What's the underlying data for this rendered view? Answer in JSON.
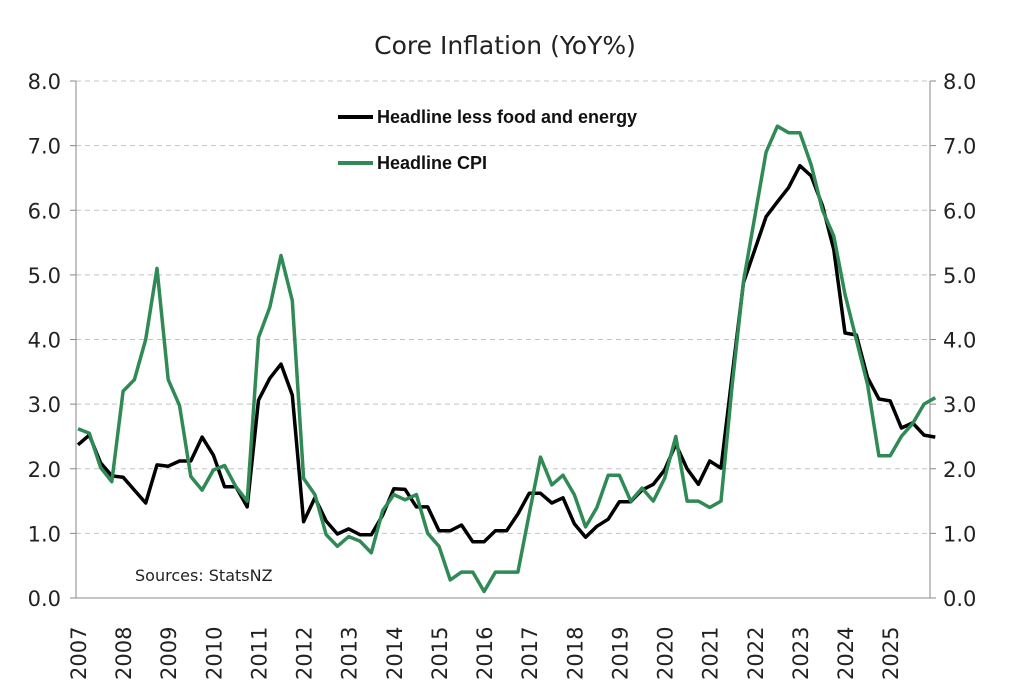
{
  "chart_data": {
    "type": "line",
    "title": "Core Inflation (YoY%)",
    "xlabel": "",
    "ylabel": "",
    "ylim": [
      0,
      8
    ],
    "yticks": [
      "0.0",
      "1.0",
      "2.0",
      "3.0",
      "4.0",
      "5.0",
      "6.0",
      "7.0",
      "8.0"
    ],
    "y2ticks": [
      "0.0",
      "1.0",
      "2.0",
      "3.0",
      "4.0",
      "5.0",
      "6.0",
      "7.0",
      "8.0"
    ],
    "xticks": [
      "2007",
      "2008",
      "2009",
      "2010",
      "2011",
      "2012",
      "2013",
      "2014",
      "2015",
      "2016",
      "2017",
      "2018",
      "2019",
      "2020",
      "2021",
      "2022",
      "2023",
      "2024",
      "2025"
    ],
    "x_start": 2007,
    "x_step": 0.25,
    "grid": "horizontal dashed",
    "legend_position": "top-center",
    "annotation": "Sources:  StatsNZ",
    "series": [
      {
        "name": "Headline less food and energy",
        "color": "#000000",
        "values": [
          2.37,
          2.52,
          2.09,
          1.89,
          1.87,
          1.67,
          1.47,
          2.06,
          2.04,
          2.12,
          2.12,
          2.49,
          2.21,
          1.72,
          1.72,
          1.41,
          3.06,
          3.4,
          3.62,
          3.14,
          1.18,
          1.55,
          1.19,
          0.99,
          1.07,
          0.98,
          0.98,
          1.28,
          1.69,
          1.68,
          1.41,
          1.41,
          1.04,
          1.04,
          1.13,
          0.87,
          0.87,
          1.04,
          1.04,
          1.3,
          1.62,
          1.62,
          1.47,
          1.55,
          1.15,
          0.94,
          1.11,
          1.22,
          1.49,
          1.49,
          1.67,
          1.76,
          1.98,
          2.38,
          2.0,
          1.76,
          2.12,
          2.01,
          3.45,
          4.88,
          5.39,
          5.9,
          6.13,
          6.35,
          6.69,
          6.53,
          6.07,
          5.39,
          4.1,
          4.07,
          3.41,
          3.08,
          3.05,
          2.63,
          2.71,
          2.52,
          2.49
        ]
      },
      {
        "name": "Headline CPI",
        "color": "#2f8a55",
        "values": [
          2.62,
          2.55,
          2.02,
          1.8,
          3.2,
          3.38,
          4.0,
          5.1,
          3.38,
          2.98,
          1.88,
          1.67,
          1.98,
          2.05,
          1.72,
          1.5,
          4.03,
          4.5,
          5.3,
          4.6,
          1.85,
          1.6,
          0.98,
          0.8,
          0.95,
          0.88,
          0.7,
          1.35,
          1.6,
          1.52,
          1.6,
          1.0,
          0.8,
          0.28,
          0.4,
          0.4,
          0.1,
          0.4,
          0.4,
          0.4,
          1.3,
          2.18,
          1.75,
          1.9,
          1.6,
          1.1,
          1.4,
          1.9,
          1.9,
          1.5,
          1.7,
          1.5,
          1.85,
          2.5,
          1.5,
          1.5,
          1.4,
          1.5,
          3.3,
          4.9,
          5.9,
          6.9,
          7.3,
          7.2,
          7.2,
          6.7,
          6.0,
          5.6,
          4.7,
          4.0,
          3.3,
          2.2,
          2.2,
          2.5,
          2.7,
          3.0,
          3.1
        ]
      }
    ]
  }
}
